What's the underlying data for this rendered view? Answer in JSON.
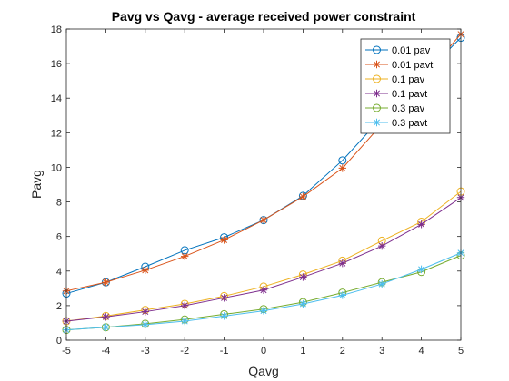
{
  "chart_data": {
    "type": "line",
    "title": "Pavg vs Qavg - average received power constraint",
    "xlabel": "Qavg",
    "ylabel": "Pavg",
    "xlim": [
      -5,
      5
    ],
    "ylim": [
      0,
      18
    ],
    "xticks": [
      -5,
      -4,
      -3,
      -2,
      -1,
      0,
      1,
      2,
      3,
      4,
      5
    ],
    "yticks": [
      0,
      2,
      4,
      6,
      8,
      10,
      12,
      14,
      16,
      18
    ],
    "x": [
      -5,
      -4,
      -3,
      -2,
      -1,
      0,
      1,
      2,
      3,
      4,
      5
    ],
    "grid": false,
    "legend_position": "top-right",
    "series": [
      {
        "name": "0.01 pav",
        "color": "#0072BD",
        "marker": "circle",
        "values": [
          2.7,
          3.35,
          4.25,
          5.2,
          5.95,
          6.95,
          8.35,
          10.4,
          12.9,
          15.2,
          17.5
        ]
      },
      {
        "name": "0.01 pavt",
        "color": "#D95319",
        "marker": "star",
        "values": [
          2.85,
          3.35,
          4.05,
          4.85,
          5.8,
          6.95,
          8.3,
          9.95,
          12.5,
          15.1,
          17.7
        ]
      },
      {
        "name": "0.1 pav",
        "color": "#EDB120",
        "marker": "circle",
        "values": [
          1.1,
          1.4,
          1.75,
          2.1,
          2.55,
          3.1,
          3.8,
          4.6,
          5.75,
          6.85,
          8.6
        ]
      },
      {
        "name": "0.1 pavt",
        "color": "#7E2F8E",
        "marker": "star",
        "values": [
          1.1,
          1.35,
          1.65,
          2.0,
          2.45,
          2.9,
          3.65,
          4.45,
          5.45,
          6.7,
          8.25
        ]
      },
      {
        "name": "0.3 pav",
        "color": "#77AC30",
        "marker": "circle",
        "values": [
          0.6,
          0.75,
          0.95,
          1.2,
          1.5,
          1.8,
          2.2,
          2.75,
          3.35,
          3.95,
          4.9
        ]
      },
      {
        "name": "0.3 pavt",
        "color": "#4DBEEE",
        "marker": "star",
        "values": [
          0.6,
          0.75,
          0.9,
          1.1,
          1.4,
          1.7,
          2.1,
          2.6,
          3.25,
          4.1,
          5.05
        ]
      }
    ]
  }
}
